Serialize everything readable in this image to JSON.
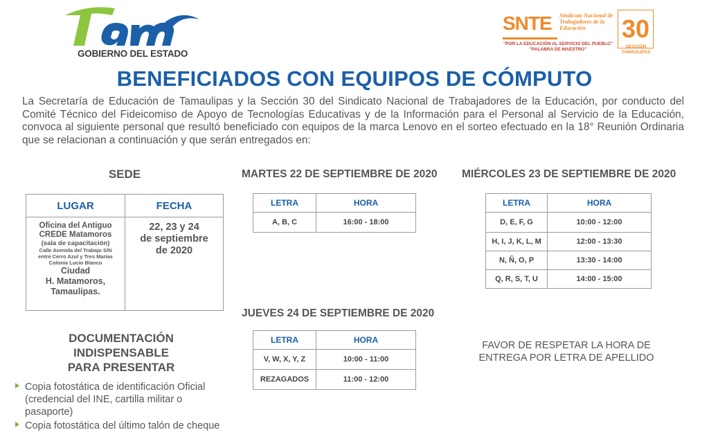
{
  "logos": {
    "tam_wordmark": "Tam",
    "tam_caption": "GOBIERNO DEL ESTADO",
    "snte_word": "SNTE",
    "snte_full_name": "Sindicato Nacional de Trabajadores de la Educación",
    "snte_slogan_1": "\"POR LA EDUCACIÓN AL SERVICIO DEL PUEBLO\"",
    "snte_slogan_2": "\"PALABRA DE MAESTRO\"",
    "snte_section_number": "30",
    "snte_section_label": "SECCIÓN",
    "snte_state": "TAMAULIPAS",
    "colors": {
      "tam_green": "#8cc63f",
      "tam_blue": "#1b5fa8",
      "snte_orange": "#f08a2c"
    }
  },
  "title": "BENEFICIADOS CON EQUIPOS DE CÓMPUTO",
  "intro": "La Secretaría de Educación de Tamaulipas y la Sección 30 del Sindicato Nacional de Trabajadores de la Educación, por conducto del Comité Técnico del Fideicomiso de Apoyo de Tecnologías Educativas y de la Información para el Personal al Servicio de la Educación, convoca al siguiente personal que resultó beneficiado con equipos de la marca Lenovo en el sorteo efectuado en la 18° Reunión Ordinaria que se relacionan a continuación y que serán entregados en:",
  "sede": {
    "heading": "SEDE",
    "col_lugar": "LUGAR",
    "col_fecha": "FECHA",
    "lugar_line1": "Oficina del Antiguo",
    "lugar_line2": "CREDE Matamoros",
    "lugar_line3": "(sala de capacitación)",
    "lugar_line4": "Calle Avenida del Trabajo S/N",
    "lugar_line5": "entre Cerro Azul y Tres Marías",
    "lugar_line6": "Colonia Lucio Blanco",
    "lugar_line7": "Ciudad",
    "lugar_line8": "H. Matamoros,",
    "lugar_line9": "Tamaulipas.",
    "fecha_line1": "22, 23 y 24",
    "fecha_line2": "de septiembre",
    "fecha_line3": "de 2020"
  },
  "schedules": {
    "col_letra": "LETRA",
    "col_hora": "HORA",
    "martes": {
      "heading": "MARTES 22 DE SEPTIEMBRE DE 2020",
      "rows": [
        {
          "letra": "A, B, C",
          "hora": "16:00 - 18:00"
        }
      ]
    },
    "miercoles": {
      "heading": "MIÉRCOLES 23 DE SEPTIEMBRE DE 2020",
      "rows": [
        {
          "letra": "D, E, F, G",
          "hora": "10:00 - 12:00"
        },
        {
          "letra": "H, I, J, K, L, M",
          "hora": "12:00 - 13:30"
        },
        {
          "letra": "N, Ñ, O, P",
          "hora": "13:30 - 14:00"
        },
        {
          "letra": "Q, R, S, T, U",
          "hora": "14:00 - 15:00"
        }
      ]
    },
    "jueves": {
      "heading": "JUEVES 24 DE SEPTIEMBRE DE 2020",
      "rows": [
        {
          "letra": "V, W, X, Y, Z",
          "hora": "10:00 - 11:00"
        },
        {
          "letra": "REZAGADOS",
          "hora": "11:00 - 12:00"
        }
      ]
    }
  },
  "documentation": {
    "heading_line1": "DOCUMENTACIÓN",
    "heading_line2": "INDISPENSABLE",
    "heading_line3": "PARA PRESENTAR",
    "items": [
      "Copia fotostática de identificación Oficial (credencial del INE, cartilla militar o pasaporte)",
      "Copia fotostática del último talón de cheque"
    ]
  },
  "notice": "FAVOR DE RESPETAR LA HORA DE ENTREGA POR LETRA DE APELLIDO"
}
